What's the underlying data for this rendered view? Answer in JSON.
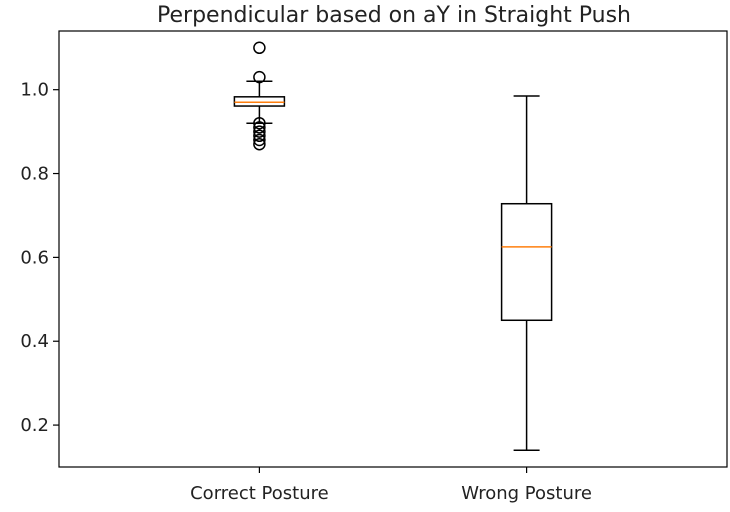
{
  "chart_data": {
    "type": "box",
    "title": "Perpendicular based on aY in Straight Push",
    "xlabel": "",
    "ylabel": "",
    "ylim": [
      0.1,
      1.14
    ],
    "yticks": [
      0.2,
      0.4,
      0.6,
      0.8,
      1.0
    ],
    "ytick_labels": [
      "0.2",
      "0.4",
      "0.6",
      "0.8",
      "1.0"
    ],
    "grid": false,
    "categories": [
      "Correct Posture",
      "Wrong Posture"
    ],
    "boxes": [
      {
        "name": "Correct Posture",
        "whisker_low": 0.92,
        "q1": 0.961,
        "median": 0.97,
        "q3": 0.983,
        "whisker_high": 1.02,
        "outliers": [
          1.1,
          1.03,
          0.92,
          0.91,
          0.9,
          0.89,
          0.88,
          0.87
        ]
      },
      {
        "name": "Wrong Posture",
        "whisker_low": 0.14,
        "q1": 0.45,
        "median": 0.625,
        "q3": 0.728,
        "whisker_high": 0.985,
        "outliers": []
      }
    ],
    "colors": {
      "box": "#000000",
      "median": "#ff7f0e",
      "axes": "#000000"
    }
  }
}
